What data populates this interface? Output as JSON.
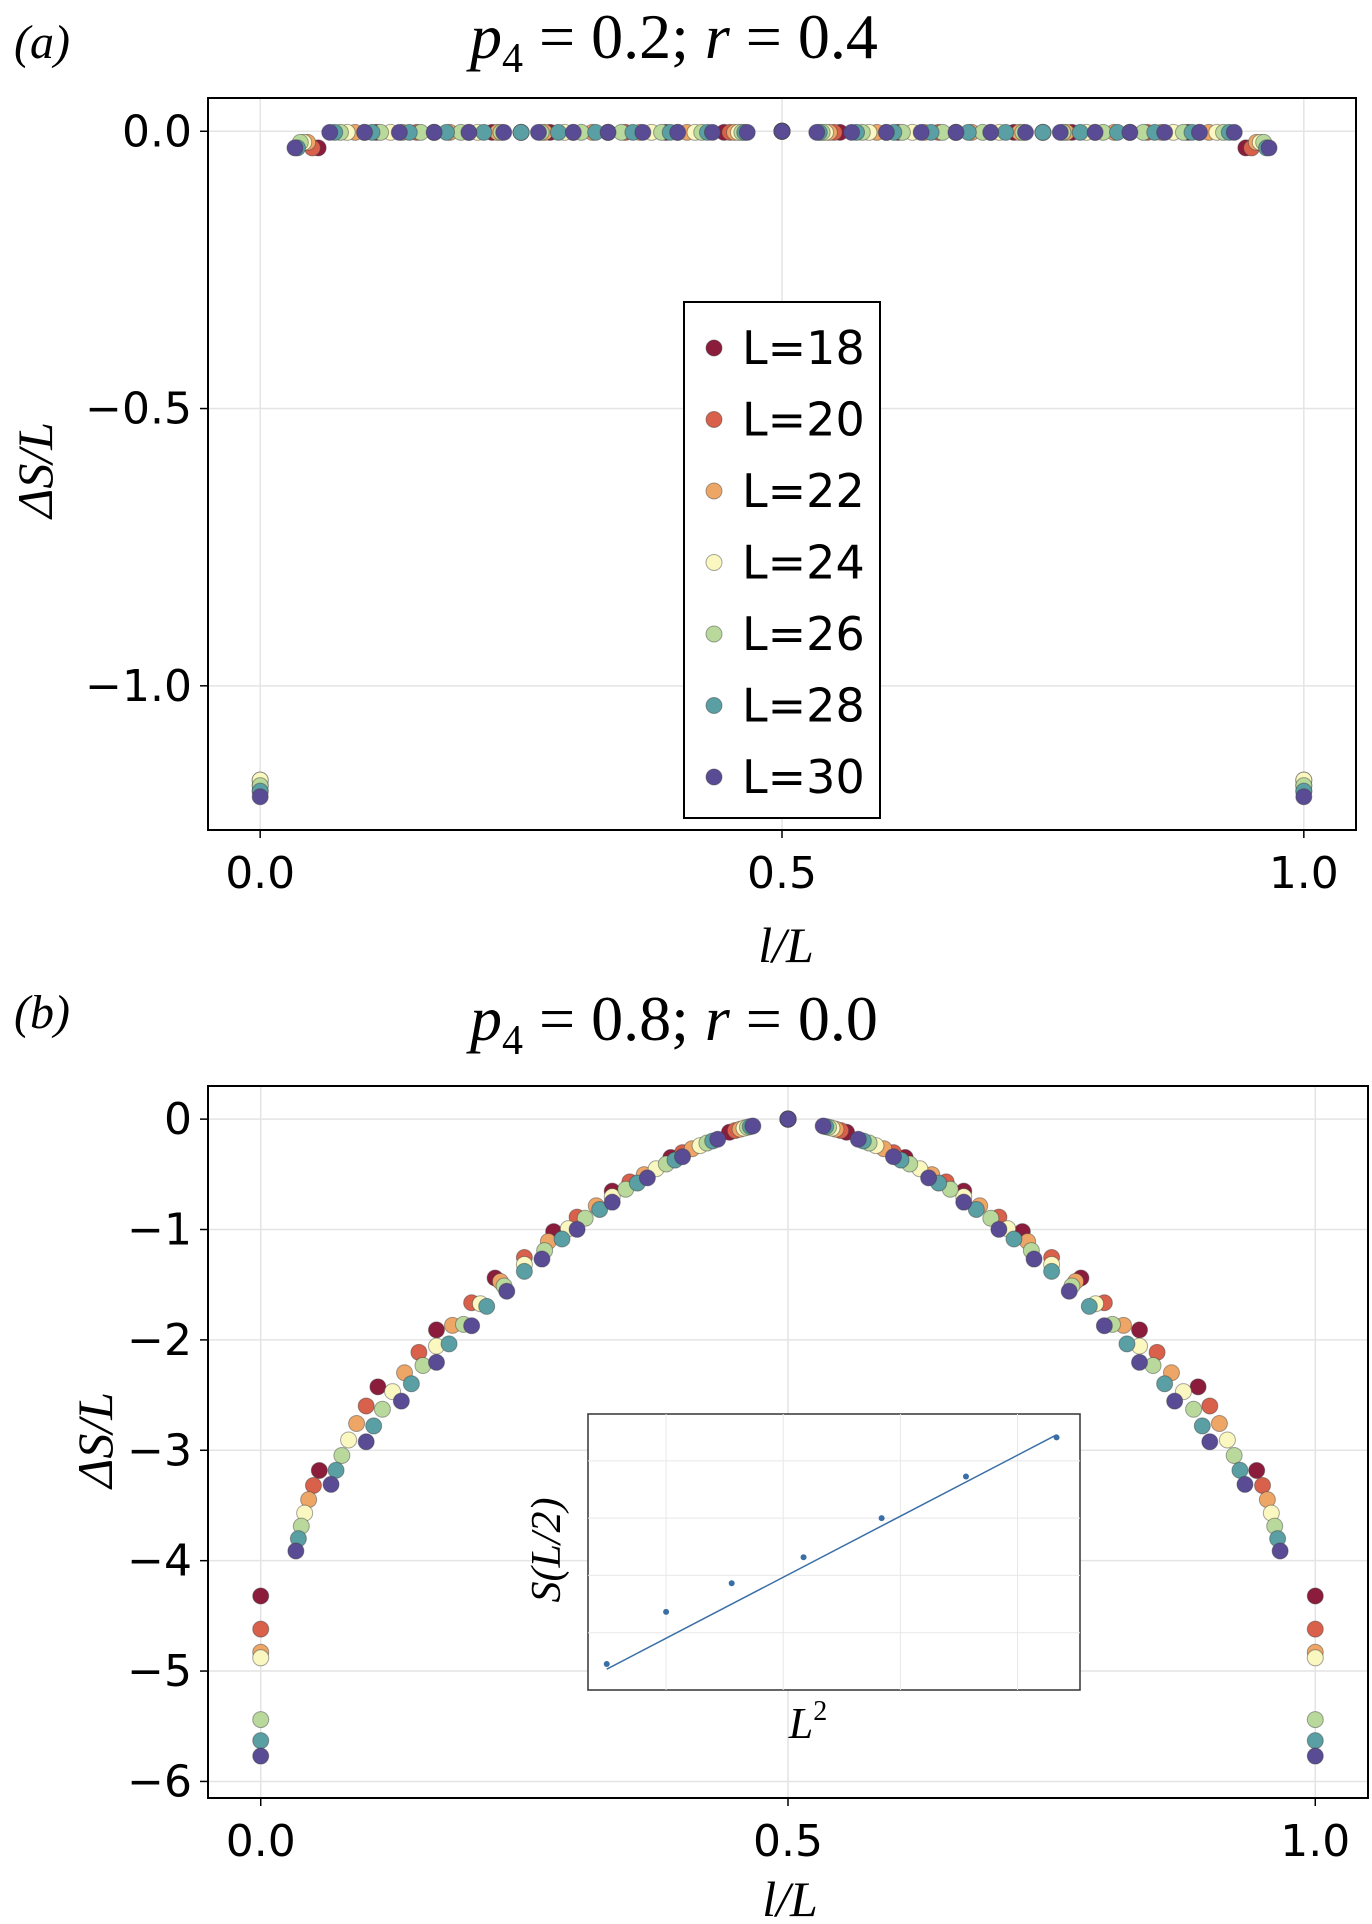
{
  "panel_a": {
    "label": "(a)",
    "title_var": "p",
    "title_sub": "4",
    "title_rest": " = 0.2;  ",
    "title_var2": "r",
    "title_rest2": " = 0.4",
    "xlabel": "l/L",
    "ylabel": "ΔS/L"
  },
  "panel_b": {
    "label": "(b)",
    "title_var": "p",
    "title_sub": "4",
    "title_rest": " = 0.8;  ",
    "title_var2": "r",
    "title_rest2": " = 0.0",
    "xlabel": "l/L",
    "ylabel": "ΔS/L"
  },
  "inset": {
    "xlabel_base": "L",
    "xlabel_sup": "2",
    "ylabel": "S(L/2)"
  },
  "colors": {
    "L=18": "#8c1c3c",
    "L=20": "#d9604b",
    "L=22": "#eea667",
    "L=24": "#faf7c0",
    "L=26": "#b9d99c",
    "L=28": "#5a9fa3",
    "L=30": "#5a4b95",
    "inset_line": "#3a6fa6"
  },
  "chart_data": [
    {
      "type": "scatter",
      "panel": "a",
      "title": "p4 = 0.2; r = 0.4",
      "xlabel": "l/L",
      "ylabel": "ΔS/L",
      "xlim": [
        -0.05,
        1.05
      ],
      "ylim": [
        -1.26,
        0.06
      ],
      "xticks": [
        0.0,
        0.5,
        1.0
      ],
      "xtick_labels": [
        "0.0",
        "0.5",
        "1.0"
      ],
      "yticks": [
        0.0,
        -0.5,
        -1.0
      ],
      "ytick_labels": [
        "0.0",
        "−0.5",
        "−1.0"
      ],
      "grid": true,
      "legend_position": "center",
      "series": [
        {
          "name": "L=18",
          "L": 18,
          "endpoint": -1.18,
          "near_edge": -0.03
        },
        {
          "name": "L=20",
          "L": 20,
          "endpoint": -1.19,
          "near_edge": -0.03
        },
        {
          "name": "L=22",
          "L": 22,
          "endpoint": -1.17,
          "near_edge": -0.02
        },
        {
          "name": "L=24",
          "L": 24,
          "endpoint": -1.17,
          "near_edge": -0.02
        },
        {
          "name": "L=26",
          "L": 26,
          "endpoint": -1.18,
          "near_edge": -0.02
        },
        {
          "name": "L=28",
          "L": 28,
          "endpoint": -1.19,
          "near_edge": -0.03
        },
        {
          "name": "L=30",
          "L": 30,
          "endpoint": -1.2,
          "near_edge": -0.03
        }
      ]
    },
    {
      "type": "scatter",
      "panel": "b",
      "title": "p4 = 0.8; r = 0.0",
      "xlabel": "l/L",
      "ylabel": "ΔS/L",
      "xlim": [
        -0.05,
        1.05
      ],
      "ylim": [
        -6.15,
        0.3
      ],
      "xticks": [
        0.0,
        0.5,
        1.0
      ],
      "xtick_labels": [
        "0.0",
        "0.5",
        "1.0"
      ],
      "yticks": [
        0,
        -1,
        -2,
        -3,
        -4,
        -5,
        -6
      ],
      "ytick_labels": [
        "0",
        "−1",
        "−2",
        "−3",
        "−4",
        "−5",
        "−6"
      ],
      "grid": true,
      "series": [
        {
          "name": "L=18",
          "L": 18,
          "endpoint": -4.32
        },
        {
          "name": "L=20",
          "L": 20,
          "endpoint": -4.62
        },
        {
          "name": "L=22",
          "L": 22,
          "endpoint": -4.83
        },
        {
          "name": "L=24",
          "L": 24,
          "endpoint": -4.88
        },
        {
          "name": "L=26",
          "L": 26,
          "endpoint": -5.44
        },
        {
          "name": "L=28",
          "L": 28,
          "endpoint": -5.63
        },
        {
          "name": "L=30",
          "L": 30,
          "endpoint": -5.77
        }
      ]
    },
    {
      "type": "scatter",
      "panel": "b-inset",
      "xlabel": "L^2",
      "ylabel": "S(L/2)",
      "x": [
        324,
        400,
        484,
        576,
        676,
        784,
        900
      ],
      "y": [
        1.0,
        3.0,
        4.1,
        5.1,
        6.6,
        8.2,
        9.7
      ],
      "fit_line": {
        "x": [
          324,
          900
        ],
        "y": [
          0.8,
          9.8
        ]
      }
    }
  ]
}
